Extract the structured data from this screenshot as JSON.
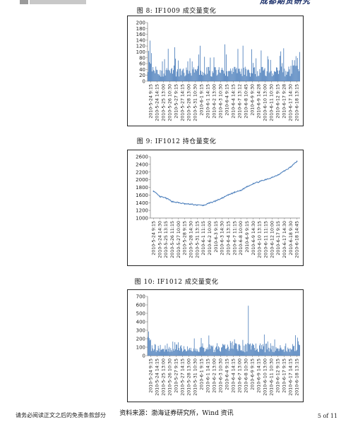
{
  "header": {
    "title": "成都期货研究"
  },
  "figures": [
    {
      "title": "图 8:  IF1009 成交量变化"
    },
    {
      "title": "图 9:  IF1012 持仓量变化"
    },
    {
      "title": "图 10:  IF1012 成交量变化"
    }
  ],
  "source": "资料来源：渤海证券研究所，Wind 资讯",
  "footer": {
    "disclaimer": "请务必阅读正文之后的免责条款部分",
    "page": "5 of 11"
  },
  "chart_data": [
    {
      "type": "bar",
      "title": "IF1009 成交量变化",
      "ylim": [
        0,
        200
      ],
      "yticks": [
        0,
        20,
        40,
        60,
        80,
        100,
        120,
        140,
        160,
        180,
        200
      ],
      "color": "#4f81bd",
      "xticks": [
        "2010-5-24 9:15",
        "2010-5-24 14:15",
        "2010-5-25 13:00",
        "2010-5-26 10:30",
        "2010-5-27 9:15",
        "2010-5-27 14:15",
        "2010-5-28 13:00",
        "2010-5-31 10:30",
        "2010-6-1 9:15",
        "2010-6-1 14:15",
        "2010-6-2 13:00",
        "2010-6-3 10:30",
        "2010-6-4 9:15",
        "2010-6-4 14:15",
        "2010-6-7 13:12",
        "2010-6-8 10:45",
        "2010-6-9 9:30",
        "2010-6-9 14:28",
        "2010-6-10 13:00",
        "2010-6-11 10:30",
        "2010-6-12 9:15",
        "2010-6-17 9:28",
        "2010-6-17 14:30",
        "2010-6-18 13:15"
      ]
    },
    {
      "type": "line",
      "title": "IF1012 持仓量变化",
      "ylim": [
        1000,
        2600
      ],
      "yticks": [
        1000,
        1200,
        1400,
        1600,
        1800,
        2000,
        2200,
        2400,
        2600
      ],
      "color": "#4f81bd",
      "x": [
        "2010-5-24 9:15",
        "2010-5-24 14:30",
        "2010-5-25 13:15",
        "2010-5-26 11:15",
        "2010-5-27 10:00",
        "2010-5-28 9:15",
        "2010-5-28 14:30",
        "2010-5-31 13:15",
        "2010-6-1 11:15",
        "2010-6-2 10:00",
        "2010-6-3 9:15",
        "2010-6-3 14:30",
        "2010-6-4 13:15",
        "2010-6-7 11:15",
        "2010-6-8 10:00",
        "2010-6-9 9:15",
        "2010-6-9 14:30",
        "2010-6-10 13:15",
        "2010-6-11 11:15",
        "2010-6-12 10:00",
        "2010-6-17 9:15",
        "2010-6-17 14:30",
        "2010-6-18 9:30",
        "2010-6-18 14:45"
      ],
      "values": [
        1700,
        1560,
        1520,
        1430,
        1400,
        1370,
        1360,
        1340,
        1330,
        1390,
        1450,
        1520,
        1600,
        1670,
        1720,
        1820,
        1900,
        1950,
        2000,
        2060,
        2130,
        2230,
        2330,
        2480
      ]
    },
    {
      "type": "bar",
      "title": "IF1012 成交量变化",
      "ylim": [
        0,
        700
      ],
      "yticks": [
        0,
        100,
        200,
        300,
        400,
        500,
        600,
        700
      ],
      "color": "#4f81bd",
      "xticks": [
        "2010-5-24 9:15",
        "2010-5-24 14:15",
        "2010-5-25 13:00",
        "2010-5-26 10:30",
        "2010-5-27 9:15",
        "2010-5-27 14:15",
        "2010-5-28 13:00",
        "2010-5-31 10:30",
        "2010-6-1 9:15",
        "2010-6-1 14:15",
        "2010-6-2 13:00",
        "2010-6-3 10:30",
        "2010-6-4 9:15",
        "2010-6-4 14:15",
        "2010-6-7 13:00",
        "2010-6-8 10:30",
        "2010-6-9 9:15",
        "2010-6-9 14:15",
        "2010-6-10 13:00",
        "2010-6-11 10:30",
        "2010-6-12 9:15",
        "2010-6-17 9:15",
        "2010-6-17 14:15",
        "2010-6-18 13:15"
      ]
    }
  ]
}
